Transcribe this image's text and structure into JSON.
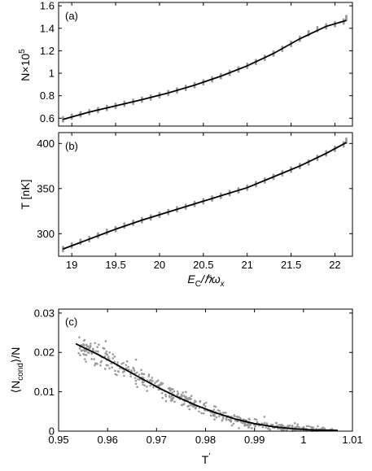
{
  "colors": {
    "data_points": "#9a9a9a",
    "fit_line": "#000000",
    "frame": "#000000"
  },
  "chart_data": [
    {
      "type": "scatter",
      "panel_label": "(a)",
      "ylabel": "N×10",
      "ylabel_superscript": "5",
      "xlabel": "",
      "xlim": [
        18.85,
        22.2
      ],
      "ylim": [
        0.53,
        1.63
      ],
      "xticks": [
        19,
        19.5,
        20,
        20.5,
        21,
        21.5,
        22
      ],
      "xtick_labels": [
        "",
        "",
        "",
        "",
        "",
        "",
        ""
      ],
      "yticks": [
        0.6,
        0.8,
        1,
        1.2,
        1.4,
        1.6
      ],
      "ytick_labels": [
        "0.6",
        "0.8",
        "1",
        "1.2",
        "1.4",
        "1.6"
      ],
      "grid": false,
      "series": [
        {
          "role": "points",
          "x": [
            18.9,
            19.0,
            19.1,
            19.2,
            19.3,
            19.4,
            19.5,
            19.6,
            19.7,
            19.8,
            19.9,
            20.0,
            20.1,
            20.2,
            20.3,
            20.4,
            20.5,
            20.6,
            20.7,
            20.8,
            20.9,
            21.0,
            21.1,
            21.2,
            21.3,
            21.4,
            21.5,
            21.6,
            21.7,
            21.8,
            21.9,
            22.0,
            22.1,
            22.13
          ],
          "y": [
            0.59,
            0.615,
            0.635,
            0.655,
            0.673,
            0.691,
            0.71,
            0.728,
            0.746,
            0.765,
            0.784,
            0.804,
            0.825,
            0.847,
            0.87,
            0.894,
            0.92,
            0.946,
            0.974,
            1.003,
            1.034,
            1.066,
            1.1,
            1.137,
            1.176,
            1.217,
            1.261,
            1.307,
            1.356,
            1.393,
            1.417,
            1.437,
            1.46,
            1.492
          ]
        },
        {
          "role": "fit",
          "x": [
            18.9,
            19.2,
            19.5,
            19.8,
            20.1,
            20.4,
            20.7,
            21.0,
            21.3,
            21.6,
            21.9,
            22.13
          ],
          "y": [
            0.59,
            0.655,
            0.71,
            0.765,
            0.825,
            0.894,
            0.974,
            1.066,
            1.176,
            1.307,
            1.417,
            1.47
          ]
        }
      ]
    },
    {
      "type": "scatter",
      "panel_label": "(b)",
      "ylabel": "T  [nK]",
      "xlabel": "",
      "xlabel_math": true,
      "xlim": [
        18.85,
        22.2
      ],
      "ylim": [
        275,
        412
      ],
      "xticks": [
        19,
        19.5,
        20,
        20.5,
        21,
        21.5,
        22
      ],
      "xtick_labels": [
        "19",
        "19.5",
        "20",
        "20.5",
        "21",
        "21.5",
        "22"
      ],
      "yticks": [
        300,
        350,
        400
      ],
      "ytick_labels": [
        "300",
        "350",
        "400"
      ],
      "grid": false,
      "series": [
        {
          "role": "points",
          "x": [
            18.9,
            19.0,
            19.1,
            19.2,
            19.3,
            19.4,
            19.5,
            19.6,
            19.7,
            19.8,
            19.9,
            20.0,
            20.1,
            20.2,
            20.3,
            20.4,
            20.5,
            20.6,
            20.7,
            20.8,
            20.9,
            21.0,
            21.1,
            21.2,
            21.3,
            21.4,
            21.5,
            21.6,
            21.7,
            21.8,
            21.9,
            22.0,
            22.1,
            22.13
          ],
          "y": [
            283,
            287,
            291,
            294,
            298,
            302,
            305,
            309,
            312,
            315,
            318,
            321,
            324,
            327,
            330,
            333,
            336,
            339,
            342,
            345,
            348,
            351,
            355,
            359,
            363,
            367,
            371,
            375,
            379,
            384,
            389,
            394,
            399,
            403
          ]
        },
        {
          "role": "fit",
          "x": [
            18.9,
            19.2,
            19.5,
            19.8,
            20.1,
            20.4,
            20.7,
            21.0,
            21.3,
            21.6,
            21.9,
            22.13
          ],
          "y": [
            283,
            294,
            305,
            315,
            324,
            333,
            342,
            351,
            363,
            375,
            389,
            401
          ]
        }
      ]
    },
    {
      "type": "scatter",
      "panel_label": "(c)",
      "ylabel": "⟨N",
      "ylabel_sub": "cond",
      "ylabel_tail": "⟩/N",
      "xlabel": "T",
      "xlabel_prime": "′",
      "xlim": [
        0.95,
        1.01
      ],
      "ylim": [
        0,
        0.031
      ],
      "xticks": [
        0.95,
        0.96,
        0.97,
        0.98,
        0.99,
        1,
        1.01
      ],
      "xtick_labels": [
        "0.95",
        "0.96",
        "0.97",
        "0.98",
        "0.99",
        "1",
        "1.01"
      ],
      "yticks": [
        0,
        0.01,
        0.02,
        0.03
      ],
      "ytick_labels": [
        "0",
        "0.01",
        "0.02",
        "0.03"
      ],
      "grid": false,
      "scatter_range": {
        "x_from": 0.954,
        "x_to": 1.006,
        "n_points": 520,
        "scatter_sd": 0.0012
      },
      "series": [
        {
          "role": "fit",
          "x": [
            0.9535,
            0.958,
            0.962,
            0.966,
            0.97,
            0.974,
            0.978,
            0.982,
            0.986,
            0.99,
            0.994,
            0.998,
            1.002,
            1.007
          ],
          "y": [
            0.0222,
            0.0195,
            0.0168,
            0.014,
            0.0113,
            0.0088,
            0.0066,
            0.0047,
            0.0031,
            0.0019,
            0.0011,
            0.0006,
            0.0003,
            0.0002
          ]
        }
      ]
    }
  ]
}
